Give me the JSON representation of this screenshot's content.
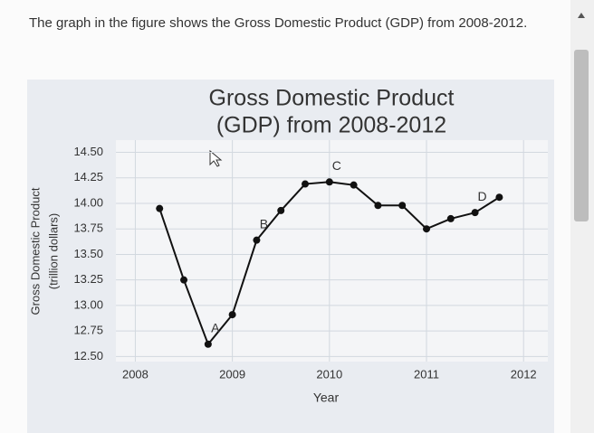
{
  "question": "The graph in the figure shows the Gross Domestic Product (GDP) from 2008-2012.",
  "chart_data": {
    "type": "line",
    "title": [
      "Gross Domestic Product",
      "(GDP) from 2008-2012"
    ],
    "y_label": [
      "Gross Domestic Product",
      "(trillion dollars)"
    ],
    "x_label": "Year",
    "x": [
      2008.25,
      2008.5,
      2008.75,
      2009,
      2009.25,
      2009.5,
      2009.75,
      2010,
      2010.25,
      2010.5,
      2010.75,
      2011,
      2011.25,
      2011.5,
      2011.75
    ],
    "values": [
      13.95,
      13.25,
      12.62,
      12.91,
      13.64,
      13.93,
      14.19,
      14.21,
      14.18,
      13.98,
      13.98,
      13.75,
      13.85,
      13.91,
      14.06
    ],
    "point_labels": [
      null,
      null,
      "A",
      null,
      "B",
      null,
      null,
      "C",
      null,
      null,
      null,
      null,
      null,
      "D",
      null
    ],
    "color": "#111111",
    "xlim": [
      2007.8,
      2012.25
    ],
    "ylim": [
      12.45,
      14.62
    ],
    "xticks": [
      2008,
      2009,
      2010,
      2011,
      2012
    ],
    "yticks": [
      {
        "value": 14.5,
        "label": "14.50"
      },
      {
        "value": 14.25,
        "label": "14.25"
      },
      {
        "value": 14.0,
        "label": "14.00"
      },
      {
        "value": 13.75,
        "label": "13.75"
      },
      {
        "value": 13.5,
        "label": "13.50"
      },
      {
        "value": 13.25,
        "label": "13.25"
      },
      {
        "value": 13.0,
        "label": "13.00"
      },
      {
        "value": 12.75,
        "label": "12.75"
      },
      {
        "value": 12.5,
        "label": "12.50"
      }
    ],
    "grid": true
  }
}
